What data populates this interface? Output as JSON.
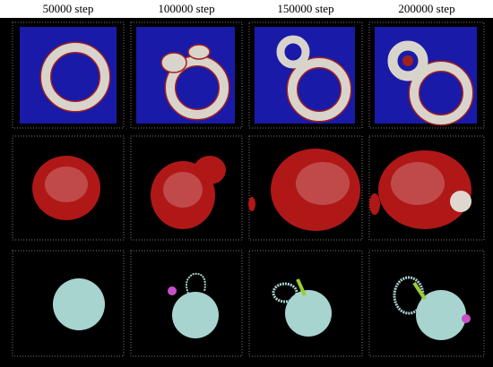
{
  "column_headers": [
    "50000 step",
    "100000 step",
    "150000 step",
    "200000 step"
  ]
}
